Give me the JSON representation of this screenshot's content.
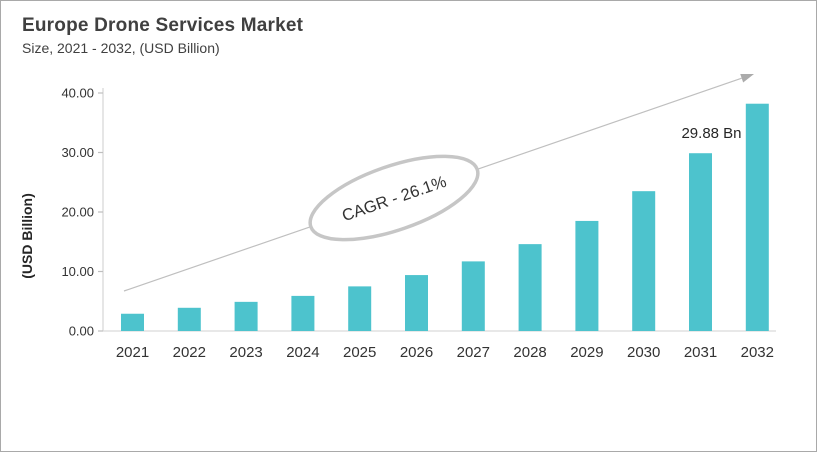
{
  "header": {
    "title": "Europe Drone Services Market",
    "subtitle": "Size, 2021 - 2032, (USD Billion)"
  },
  "chart_data": {
    "type": "bar",
    "title": "Europe Drone Services Market",
    "subtitle": "Size, 2021 - 2032, (USD Billion)",
    "categories": [
      "2021",
      "2022",
      "2023",
      "2024",
      "2025",
      "2026",
      "2027",
      "2028",
      "2029",
      "2030",
      "2031",
      "2032"
    ],
    "values": [
      2.9,
      3.9,
      4.9,
      5.9,
      7.5,
      9.4,
      11.7,
      14.6,
      18.5,
      23.5,
      29.88,
      38.2
    ],
    "xlabel": "",
    "ylabel": "(USD Billion)",
    "ylim": [
      0,
      40
    ],
    "ytick_labels": [
      "0.00",
      "10.00",
      "20.00",
      "30.00",
      "40.00"
    ],
    "ytick_values": [
      0,
      10,
      20,
      30,
      40
    ],
    "grid": false,
    "legend": false,
    "annotations": {
      "cagr_label": "CAGR - 26.1%",
      "value_label": {
        "text": "29.88 Bn",
        "category": "2031"
      },
      "trend_arrow": "up-right"
    },
    "colors": {
      "bar": "#4DC3CD",
      "axis_line": "#D9D9D9",
      "tick_mark": "#BFBFBF",
      "arrow": "#BFBFBF",
      "arrowhead": "#ABABAB",
      "ellipse_stroke": "#C6C6C6",
      "ellipse_fill": "#FFFFFF",
      "title_text": "#404040",
      "label_text": "#333333",
      "value_label_text": "#262626",
      "frame_border": "#A9A9A9"
    }
  }
}
